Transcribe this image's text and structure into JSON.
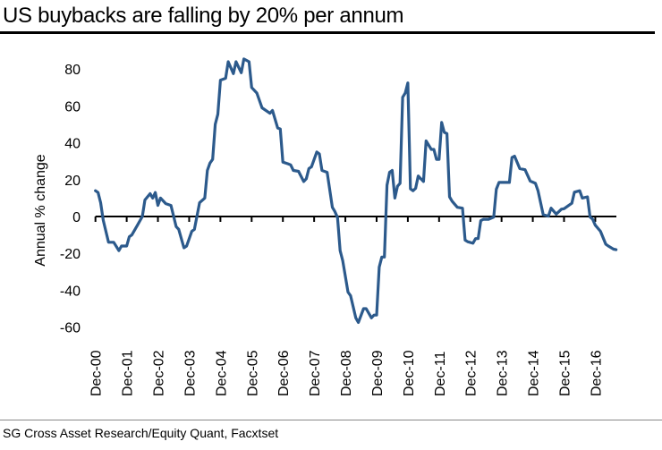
{
  "title": "US buybacks are falling by 20% per annum",
  "source": "SG Cross Asset Research/Equity Quant, Facxtset",
  "colors": {
    "line": "#2c5a8c",
    "axis": "#000000"
  },
  "chart_data": {
    "type": "line",
    "title": "US buybacks are falling by 20% per annum",
    "xlabel": "",
    "ylabel": "Annual % change",
    "ylim": [
      -60,
      85
    ],
    "yticks": [
      80,
      60,
      40,
      20,
      0,
      -20,
      -40,
      -60
    ],
    "xticks": [
      "Dec-00",
      "Dec-01",
      "Dec-02",
      "Dec-03",
      "Dec-04",
      "Dec-05",
      "Dec-06",
      "Dec-07",
      "Dec-08",
      "Dec-09",
      "Dec-10",
      "Dec-11",
      "Dec-12",
      "Dec-13",
      "Dec-14",
      "Dec-15",
      "Dec-16"
    ],
    "grid": false,
    "legend": "none",
    "series": [
      {
        "points": [
          [
            "2000-12",
            14
          ],
          [
            "2001-01",
            13
          ],
          [
            "2001-02",
            7.5
          ],
          [
            "2001-03",
            -2
          ],
          [
            "2001-05",
            -14
          ],
          [
            "2001-07",
            -14
          ],
          [
            "2001-09",
            -18.5
          ],
          [
            "2001-10",
            -16
          ],
          [
            "2001-12",
            -16
          ],
          [
            "2002-01",
            -11
          ],
          [
            "2002-02",
            -10
          ],
          [
            "2002-04",
            -5
          ],
          [
            "2002-06",
            0
          ],
          [
            "2002-07",
            9
          ],
          [
            "2002-09",
            12.4
          ],
          [
            "2002-10",
            10
          ],
          [
            "2002-11",
            13
          ],
          [
            "2002-12",
            6
          ],
          [
            "2003-01",
            10
          ],
          [
            "2003-03",
            7
          ],
          [
            "2003-05",
            6
          ],
          [
            "2003-07",
            -5.5
          ],
          [
            "2003-08",
            -7
          ],
          [
            "2003-10",
            -17
          ],
          [
            "2003-11",
            -16
          ],
          [
            "2004-01",
            -8
          ],
          [
            "2004-02",
            -7
          ],
          [
            "2004-04",
            7.5
          ],
          [
            "2004-06",
            10
          ],
          [
            "2004-07",
            25
          ],
          [
            "2004-08",
            29
          ],
          [
            "2004-09",
            31
          ],
          [
            "2004-10",
            50
          ],
          [
            "2004-11",
            55.5
          ],
          [
            "2004-12",
            74
          ],
          [
            "2005-02",
            75
          ],
          [
            "2005-03",
            84
          ],
          [
            "2005-05",
            77.5
          ],
          [
            "2005-06",
            84
          ],
          [
            "2005-08",
            78
          ],
          [
            "2005-09",
            85.5
          ],
          [
            "2005-11",
            84
          ],
          [
            "2005-12",
            70
          ],
          [
            "2006-02",
            67
          ],
          [
            "2006-04",
            59
          ],
          [
            "2006-07",
            56
          ],
          [
            "2006-08",
            57.5
          ],
          [
            "2006-10",
            48
          ],
          [
            "2006-11",
            47.5
          ],
          [
            "2006-12",
            29.5
          ],
          [
            "2007-02",
            28.6
          ],
          [
            "2007-03",
            28
          ],
          [
            "2007-04",
            25
          ],
          [
            "2007-06",
            24.5
          ],
          [
            "2007-08",
            19
          ],
          [
            "2007-09",
            20.5
          ],
          [
            "2007-10",
            26
          ],
          [
            "2007-11",
            27
          ],
          [
            "2008-01",
            35
          ],
          [
            "2008-02",
            34
          ],
          [
            "2008-03",
            25
          ],
          [
            "2008-05",
            24
          ],
          [
            "2008-07",
            5
          ],
          [
            "2008-08",
            2.6
          ],
          [
            "2008-09",
            -0.6
          ],
          [
            "2008-10",
            -18.5
          ],
          [
            "2008-11",
            -24
          ],
          [
            "2009-01",
            -41
          ],
          [
            "2009-02",
            -43
          ],
          [
            "2009-04",
            -55
          ],
          [
            "2009-05",
            -57.5
          ],
          [
            "2009-07",
            -50
          ],
          [
            "2009-08",
            -50
          ],
          [
            "2009-10",
            -55
          ],
          [
            "2009-11",
            -53.5
          ],
          [
            "2009-12",
            -53.5
          ],
          [
            "2010-01",
            -27.5
          ],
          [
            "2010-02",
            -22
          ],
          [
            "2010-03",
            -22
          ],
          [
            "2010-04",
            17
          ],
          [
            "2010-05",
            24
          ],
          [
            "2010-06",
            25
          ],
          [
            "2010-07",
            10
          ],
          [
            "2010-08",
            16.4
          ],
          [
            "2010-09",
            18
          ],
          [
            "2010-10",
            64.7
          ],
          [
            "2010-11",
            67
          ],
          [
            "2010-12",
            72.5
          ],
          [
            "2011-01",
            15
          ],
          [
            "2011-02",
            14
          ],
          [
            "2011-03",
            15.3
          ],
          [
            "2011-04",
            22
          ],
          [
            "2011-05",
            20.5
          ],
          [
            "2011-06",
            19
          ],
          [
            "2011-07",
            41
          ],
          [
            "2011-09",
            36.4
          ],
          [
            "2011-10",
            36.4
          ],
          [
            "2011-11",
            31
          ],
          [
            "2011-12",
            31
          ],
          [
            "2012-01",
            51
          ],
          [
            "2012-02",
            45.7
          ],
          [
            "2012-03",
            45
          ],
          [
            "2012-04",
            10.7
          ],
          [
            "2012-05",
            8.3
          ],
          [
            "2012-07",
            5
          ],
          [
            "2012-09",
            4.5
          ],
          [
            "2012-10",
            -12.8
          ],
          [
            "2012-11",
            -13.7
          ],
          [
            "2013-01",
            -14.5
          ],
          [
            "2013-02",
            -12
          ],
          [
            "2013-03",
            -12
          ],
          [
            "2013-04",
            -2.3
          ],
          [
            "2013-05",
            -1.5
          ],
          [
            "2013-07",
            -1.5
          ],
          [
            "2013-09",
            -0.3
          ],
          [
            "2013-10",
            14.8
          ],
          [
            "2013-11",
            18.5
          ],
          [
            "2014-03",
            18.5
          ],
          [
            "2014-04",
            32
          ],
          [
            "2014-05",
            32.7
          ],
          [
            "2014-07",
            26
          ],
          [
            "2014-09",
            25.4
          ],
          [
            "2014-11",
            19.2
          ],
          [
            "2015-01",
            18
          ],
          [
            "2015-02",
            14
          ],
          [
            "2015-04",
            1
          ],
          [
            "2015-06",
            0.2
          ],
          [
            "2015-07",
            4.5
          ],
          [
            "2015-09",
            1.3
          ],
          [
            "2015-11",
            4
          ],
          [
            "2015-12",
            4.2
          ],
          [
            "2016-02",
            6.2
          ],
          [
            "2016-03",
            7.2
          ],
          [
            "2016-04",
            13.2
          ],
          [
            "2016-06",
            14
          ],
          [
            "2016-07",
            10
          ],
          [
            "2016-09",
            10.7
          ],
          [
            "2016-10",
            -0.3
          ],
          [
            "2016-11",
            -1.5
          ],
          [
            "2016-12",
            -4.7
          ],
          [
            "2017-02",
            -8
          ],
          [
            "2017-04",
            -15
          ],
          [
            "2017-05",
            -16
          ],
          [
            "2017-07",
            -17.7
          ],
          [
            "2017-08",
            -18
          ]
        ]
      }
    ]
  }
}
